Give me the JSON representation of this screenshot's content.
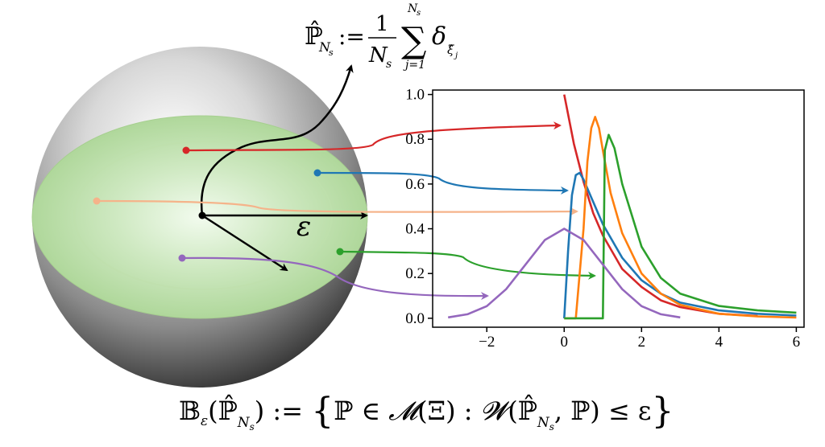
{
  "formula_top": {
    "lhs": "ℙ̂",
    "lhs_sub": "N",
    "lhs_subsub": "s",
    "assign": ":=",
    "frac_num": "1",
    "frac_den": "N",
    "frac_den_sub": "s",
    "sum_sym": "∑",
    "sum_upper": "N",
    "sum_upper_sub": "s",
    "sum_lower": "j=1",
    "delta": "δ",
    "delta_sub": "ξ̂",
    "delta_subsub": "j"
  },
  "epsilon_label": "ε",
  "formula_bottom": {
    "b": "𝔹",
    "b_sub": "ε",
    "open": "(ℙ̂",
    "arg_sub": "N",
    "arg_subsub": "s",
    "close": ")",
    "assign": " := ",
    "set_open": "{",
    "body1": "ℙ ∈ ",
    "calM": "𝓜",
    "body2": "(Ξ) : ",
    "calW": "𝓦",
    "body3": "(ℙ̂",
    "w_sub": "N",
    "w_subsub": "s",
    "body4": ", ℙ) ≤ ε",
    "set_close": "}"
  },
  "colors": {
    "red": "#d62728",
    "blue": "#1f77b4",
    "peach": "#f5b38a",
    "orange": "#ff7f0e",
    "green": "#2ca02c",
    "purple": "#9467bd",
    "disk_green": "#b7dca0",
    "black": "#000000"
  },
  "chart_data": {
    "type": "line",
    "xlim": [
      -3.4,
      6.2
    ],
    "ylim": [
      -0.04,
      1.02
    ],
    "xticks": [
      -2,
      0,
      2,
      4,
      6
    ],
    "yticks": [
      0.0,
      0.2,
      0.4,
      0.6,
      0.8,
      1.0
    ],
    "xtick_labels": [
      "−2",
      "0",
      "2",
      "4",
      "6"
    ],
    "ytick_labels": [
      "0.0",
      "0.2",
      "0.4",
      "0.6",
      "0.8",
      "1.0"
    ],
    "grid": false,
    "legend": "none",
    "series": [
      {
        "color": "red",
        "x": [
          0,
          0.25,
          0.5,
          0.75,
          1,
          1.5,
          2,
          2.5,
          3,
          4,
          5
        ],
        "y": [
          1.0,
          0.78,
          0.61,
          0.47,
          0.37,
          0.22,
          0.14,
          0.08,
          0.05,
          0.02,
          0.01
        ]
      },
      {
        "color": "blue",
        "x": [
          0,
          0.1,
          0.2,
          0.3,
          0.4,
          0.5,
          0.7,
          1,
          1.5,
          2,
          2.5,
          3,
          4,
          5,
          6
        ],
        "y": [
          0.0,
          0.3,
          0.55,
          0.64,
          0.65,
          0.62,
          0.54,
          0.42,
          0.27,
          0.17,
          0.11,
          0.07,
          0.035,
          0.02,
          0.012
        ]
      },
      {
        "color": "orange",
        "x": [
          0,
          0.3,
          0.5,
          0.6,
          0.7,
          0.8,
          0.9,
          1,
          1.2,
          1.5,
          2,
          2.5,
          3,
          4,
          5,
          6
        ],
        "y": [
          0.0,
          0.0,
          0.4,
          0.7,
          0.85,
          0.9,
          0.85,
          0.75,
          0.56,
          0.38,
          0.2,
          0.11,
          0.06,
          0.02,
          0.008,
          0.003
        ]
      },
      {
        "color": "green",
        "x": [
          0,
          1,
          1.05,
          1.15,
          1.3,
          1.5,
          2,
          2.5,
          3,
          4,
          5,
          6
        ],
        "y": [
          0.0,
          0.0,
          0.75,
          0.82,
          0.76,
          0.6,
          0.32,
          0.18,
          0.11,
          0.055,
          0.035,
          0.025
        ]
      },
      {
        "color": "purple",
        "x": [
          -3,
          -2.5,
          -2,
          -1.5,
          -1,
          -0.5,
          0,
          0.5,
          1,
          1.5,
          2,
          2.5,
          3
        ],
        "y": [
          0.004,
          0.018,
          0.054,
          0.13,
          0.24,
          0.35,
          0.4,
          0.35,
          0.24,
          0.13,
          0.054,
          0.018,
          0.004
        ]
      }
    ]
  }
}
